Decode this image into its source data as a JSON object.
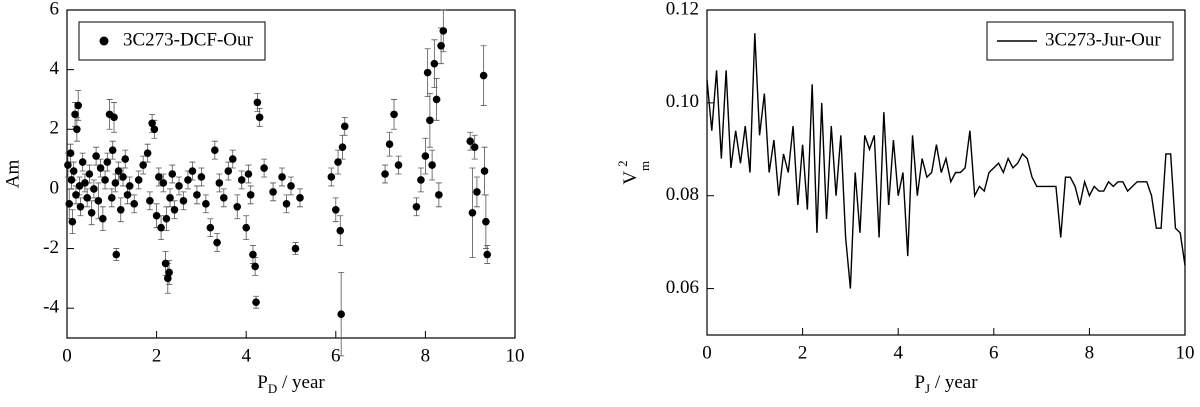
{
  "chart_data": [
    {
      "type": "scatter",
      "xlabel": [
        "P",
        "D",
        " / year"
      ],
      "ylabel": "Am",
      "xlim": [
        0,
        10
      ],
      "ylim": [
        -5,
        6
      ],
      "xticks": [
        0,
        2,
        4,
        6,
        8,
        10
      ],
      "yticks": [
        -4,
        -2,
        0,
        2,
        4,
        6
      ],
      "legend": "upper left",
      "series": [
        {
          "name": "3C273-DCF-Our",
          "color": "#000000",
          "x": [
            0.02,
            0.05,
            0.08,
            0.1,
            0.12,
            0.15,
            0.18,
            0.2,
            0.22,
            0.25,
            0.28,
            0.3,
            0.35,
            0.4,
            0.45,
            0.5,
            0.55,
            0.6,
            0.65,
            0.7,
            0.75,
            0.8,
            0.85,
            0.9,
            0.95,
            1.0,
            1.02,
            1.05,
            1.08,
            1.1,
            1.15,
            1.2,
            1.25,
            1.3,
            1.35,
            1.4,
            1.5,
            1.6,
            1.7,
            1.8,
            1.85,
            1.9,
            1.95,
            2.0,
            2.05,
            2.1,
            2.15,
            2.2,
            2.22,
            2.25,
            2.28,
            2.3,
            2.35,
            2.4,
            2.5,
            2.6,
            2.7,
            2.8,
            2.9,
            3.0,
            3.1,
            3.2,
            3.3,
            3.35,
            3.4,
            3.5,
            3.6,
            3.7,
            3.8,
            3.9,
            4.0,
            4.05,
            4.1,
            4.15,
            4.2,
            4.25,
            4.3,
            4.22,
            4.4,
            4.6,
            4.8,
            4.9,
            5.0,
            5.1,
            5.2,
            5.9,
            6.0,
            6.05,
            6.1,
            6.12,
            6.15,
            6.2,
            7.1,
            7.2,
            7.3,
            7.4,
            7.8,
            7.9,
            8.0,
            8.05,
            8.1,
            8.15,
            8.2,
            8.25,
            8.3,
            8.35,
            8.4,
            9.0,
            9.05,
            9.1,
            9.15,
            9.3,
            9.32,
            9.35,
            9.38
          ],
          "values": [
            0.8,
            -0.5,
            1.2,
            0.3,
            -1.1,
            0.6,
            2.5,
            -0.2,
            2.0,
            2.8,
            0.1,
            -0.6,
            0.9,
            0.2,
            -0.3,
            0.5,
            -0.8,
            0.0,
            1.1,
            -0.4,
            0.7,
            -1.0,
            0.3,
            0.9,
            2.5,
            -0.3,
            1.3,
            2.4,
            0.2,
            -2.2,
            0.6,
            -0.7,
            0.4,
            1.0,
            -0.2,
            0.1,
            -0.5,
            0.3,
            0.8,
            1.2,
            -0.4,
            2.2,
            2.0,
            -0.9,
            0.4,
            -1.3,
            0.2,
            -2.5,
            -1.0,
            -3.0,
            -2.8,
            -0.3,
            0.5,
            -0.7,
            0.1,
            -0.4,
            0.3,
            0.6,
            -0.2,
            0.4,
            -0.5,
            -1.3,
            1.3,
            -1.8,
            0.2,
            -0.3,
            0.6,
            1.0,
            -0.6,
            0.3,
            -1.3,
            0.5,
            -0.2,
            -2.2,
            -2.6,
            2.9,
            2.4,
            -3.8,
            0.7,
            -0.1,
            0.4,
            -0.5,
            0.1,
            -2.0,
            -0.3,
            0.4,
            -0.7,
            0.9,
            -1.4,
            -4.2,
            1.4,
            2.1,
            0.5,
            1.5,
            2.5,
            0.8,
            -0.6,
            0.3,
            1.1,
            3.9,
            2.3,
            0.8,
            4.2,
            3.0,
            -0.2,
            4.8,
            5.3,
            1.6,
            -0.8,
            1.4,
            -0.1,
            3.8,
            0.6,
            -1.1,
            -2.2
          ],
          "errors": [
            0.4,
            0.5,
            0.3,
            0.3,
            0.4,
            0.3,
            0.4,
            0.3,
            0.4,
            0.5,
            0.3,
            0.3,
            0.3,
            0.3,
            0.3,
            0.3,
            0.4,
            0.3,
            0.3,
            0.6,
            0.3,
            0.4,
            0.3,
            0.3,
            0.5,
            0.3,
            0.3,
            0.5,
            0.3,
            0.2,
            0.3,
            0.4,
            0.3,
            0.3,
            0.3,
            0.3,
            0.3,
            0.3,
            0.3,
            0.3,
            0.3,
            0.3,
            0.3,
            0.4,
            0.3,
            0.4,
            0.3,
            0.4,
            0.4,
            0.5,
            0.4,
            0.3,
            0.3,
            0.3,
            0.3,
            0.3,
            0.3,
            0.3,
            0.3,
            0.3,
            0.3,
            0.3,
            0.3,
            0.3,
            0.3,
            0.3,
            0.3,
            0.3,
            0.4,
            0.3,
            0.4,
            0.3,
            0.3,
            0.3,
            0.3,
            0.3,
            0.3,
            0.2,
            0.3,
            0.3,
            0.3,
            0.3,
            0.3,
            0.2,
            0.3,
            0.3,
            0.4,
            0.4,
            0.5,
            1.4,
            0.4,
            0.3,
            0.3,
            0.4,
            0.5,
            0.3,
            0.3,
            0.4,
            0.6,
            0.8,
            0.9,
            0.5,
            0.8,
            0.7,
            0.4,
            0.6,
            0.7,
            0.3,
            1.5,
            0.4,
            0.5,
            1.0,
            0.8,
            0.9,
            0.3
          ]
        }
      ]
    },
    {
      "type": "line",
      "xlabel": [
        "P",
        "J",
        " / year"
      ],
      "ylabel": [
        "V",
        "m",
        "2"
      ],
      "xlim": [
        0,
        10
      ],
      "ylim": [
        0.05,
        0.12
      ],
      "xticks": [
        0,
        2,
        4,
        6,
        8,
        10
      ],
      "yticks": [
        0.06,
        0.08,
        {
          "value": 0.1,
          "label": "0.10"
        },
        0.12
      ],
      "legend": "upper right",
      "series": [
        {
          "name": "3C273-Jur-Our",
          "color": "#000000",
          "x": [
            0,
            0.1,
            0.2,
            0.3,
            0.4,
            0.5,
            0.6,
            0.7,
            0.8,
            0.9,
            1.0,
            1.1,
            1.2,
            1.3,
            1.4,
            1.5,
            1.6,
            1.7,
            1.8,
            1.9,
            2.0,
            2.1,
            2.2,
            2.3,
            2.4,
            2.5,
            2.6,
            2.7,
            2.8,
            2.9,
            3.0,
            3.1,
            3.2,
            3.3,
            3.4,
            3.5,
            3.6,
            3.7,
            3.8,
            3.9,
            4.0,
            4.1,
            4.2,
            4.3,
            4.4,
            4.5,
            4.6,
            4.7,
            4.8,
            4.9,
            5.0,
            5.1,
            5.2,
            5.3,
            5.4,
            5.5,
            5.6,
            5.7,
            5.8,
            5.9,
            6.0,
            6.1,
            6.2,
            6.3,
            6.4,
            6.5,
            6.6,
            6.7,
            6.8,
            6.9,
            7.0,
            7.1,
            7.2,
            7.3,
            7.4,
            7.5,
            7.6,
            7.7,
            7.8,
            7.9,
            8.0,
            8.1,
            8.2,
            8.3,
            8.4,
            8.5,
            8.6,
            8.7,
            8.8,
            8.9,
            9.0,
            9.1,
            9.2,
            9.3,
            9.4,
            9.5,
            9.6,
            9.7,
            9.8,
            9.9,
            10.0
          ],
          "values": [
            0.105,
            0.094,
            0.107,
            0.088,
            0.107,
            0.086,
            0.094,
            0.087,
            0.095,
            0.085,
            0.115,
            0.093,
            0.102,
            0.085,
            0.092,
            0.08,
            0.089,
            0.085,
            0.095,
            0.078,
            0.091,
            0.077,
            0.104,
            0.072,
            0.1,
            0.075,
            0.095,
            0.08,
            0.093,
            0.071,
            0.06,
            0.085,
            0.072,
            0.093,
            0.09,
            0.093,
            0.071,
            0.098,
            0.078,
            0.092,
            0.08,
            0.085,
            0.067,
            0.093,
            0.08,
            0.088,
            0.084,
            0.085,
            0.091,
            0.085,
            0.088,
            0.083,
            0.085,
            0.085,
            0.086,
            0.094,
            0.08,
            0.082,
            0.081,
            0.085,
            0.086,
            0.087,
            0.085,
            0.088,
            0.086,
            0.087,
            0.089,
            0.088,
            0.084,
            0.082,
            0.082,
            0.082,
            0.082,
            0.082,
            0.071,
            0.084,
            0.084,
            0.082,
            0.078,
            0.083,
            0.08,
            0.082,
            0.081,
            0.081,
            0.083,
            0.082,
            0.083,
            0.083,
            0.081,
            0.082,
            0.083,
            0.083,
            0.083,
            0.08,
            0.073,
            0.073,
            0.089,
            0.089,
            0.073,
            0.072,
            0.065
          ]
        }
      ]
    }
  ]
}
